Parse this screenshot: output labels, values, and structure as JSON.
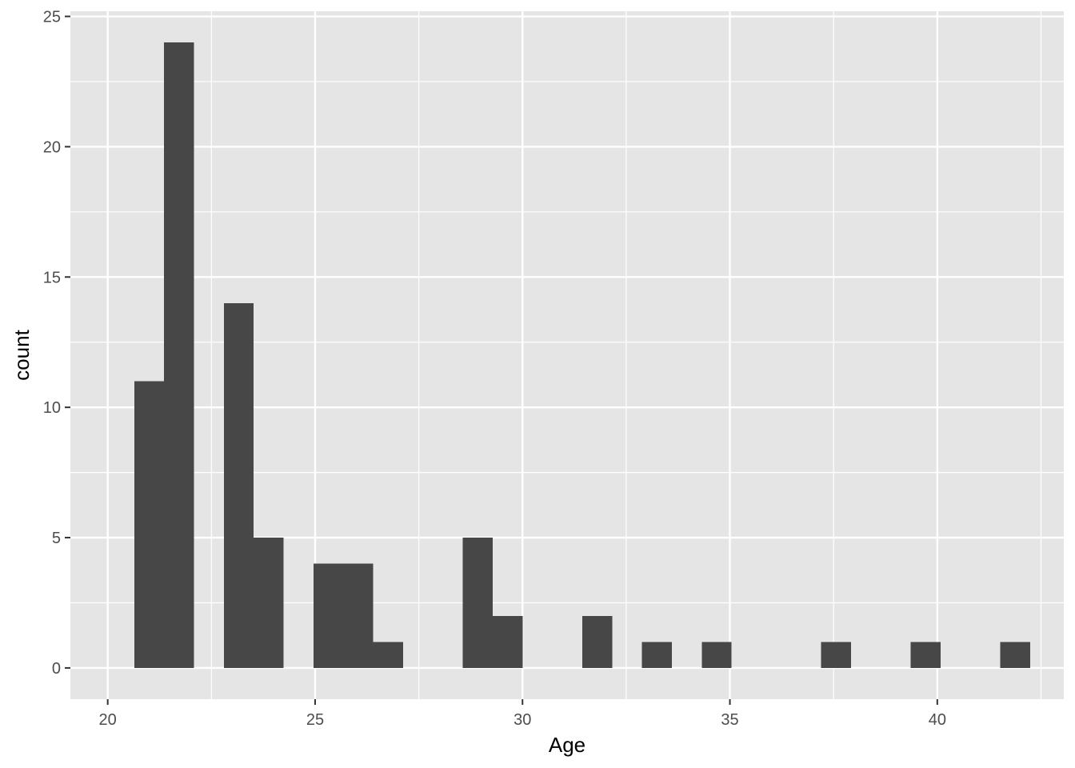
{
  "chart_data": {
    "type": "bar",
    "subtype": "histogram",
    "title": "",
    "xlabel": "Age",
    "ylabel": "count",
    "xlim": [
      19.1,
      43.05
    ],
    "ylim": [
      -1.2,
      25.2
    ],
    "x_ticks": [
      20,
      25,
      30,
      35,
      40
    ],
    "y_ticks": [
      0,
      5,
      10,
      15,
      20,
      25
    ],
    "grid": true,
    "legend": "none",
    "bin_width": 0.72,
    "bins": [
      {
        "x_start": 20.64,
        "x_end": 21.36,
        "count": 11
      },
      {
        "x_start": 21.36,
        "x_end": 22.08,
        "count": 24
      },
      {
        "x_start": 22.8,
        "x_end": 23.52,
        "count": 14
      },
      {
        "x_start": 23.52,
        "x_end": 24.24,
        "count": 5
      },
      {
        "x_start": 24.96,
        "x_end": 25.68,
        "count": 4
      },
      {
        "x_start": 25.68,
        "x_end": 26.4,
        "count": 4
      },
      {
        "x_start": 26.4,
        "x_end": 27.12,
        "count": 1
      },
      {
        "x_start": 28.56,
        "x_end": 29.28,
        "count": 5
      },
      {
        "x_start": 29.28,
        "x_end": 30.0,
        "count": 2
      },
      {
        "x_start": 31.44,
        "x_end": 32.16,
        "count": 2
      },
      {
        "x_start": 32.88,
        "x_end": 33.6,
        "count": 1
      },
      {
        "x_start": 34.32,
        "x_end": 35.04,
        "count": 1
      },
      {
        "x_start": 37.2,
        "x_end": 37.92,
        "count": 1
      },
      {
        "x_start": 39.36,
        "x_end": 40.08,
        "count": 1
      },
      {
        "x_start": 41.52,
        "x_end": 42.24,
        "count": 1
      }
    ],
    "colors": {
      "panel": "#e5e5e5",
      "grid_major": "#ffffff",
      "bar": "#474747",
      "tick_text": "#4d4d4d",
      "tick_mark": "#333333"
    }
  }
}
